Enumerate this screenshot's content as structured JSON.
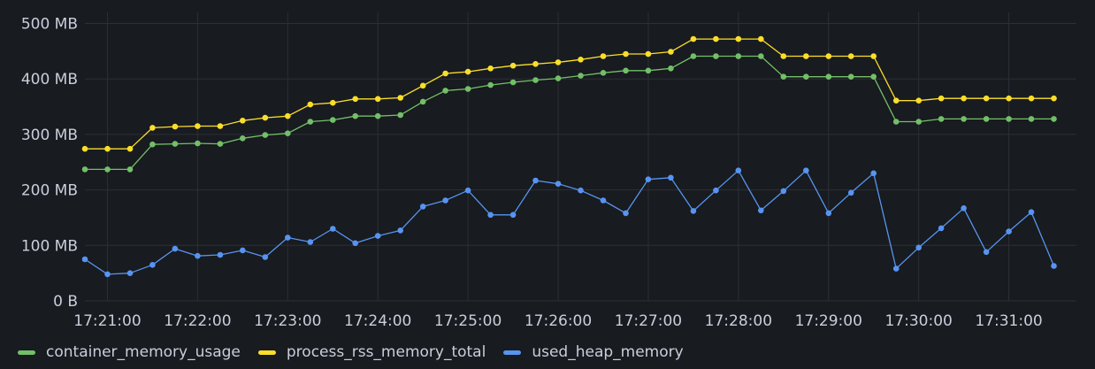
{
  "chart_data": {
    "type": "line",
    "title": "",
    "xlabel": "",
    "ylabel": "",
    "y_unit": "MB",
    "ylim": [
      0,
      520
    ],
    "y_ticks": [
      {
        "value": 0,
        "label": "0 B"
      },
      {
        "value": 100,
        "label": "100 MB"
      },
      {
        "value": 200,
        "label": "200 MB"
      },
      {
        "value": 300,
        "label": "300 MB"
      },
      {
        "value": 400,
        "label": "400 MB"
      },
      {
        "value": 500,
        "label": "500 MB"
      }
    ],
    "xlim": [
      "17:20:45",
      "17:31:45"
    ],
    "x_ticks": [
      "17:21:00",
      "17:22:00",
      "17:23:00",
      "17:24:00",
      "17:25:00",
      "17:26:00",
      "17:27:00",
      "17:28:00",
      "17:29:00",
      "17:30:00",
      "17:31:00"
    ],
    "x": [
      "17:20:45",
      "17:21:00",
      "17:21:15",
      "17:21:30",
      "17:21:45",
      "17:22:00",
      "17:22:15",
      "17:22:30",
      "17:22:45",
      "17:23:00",
      "17:23:15",
      "17:23:30",
      "17:23:45",
      "17:24:00",
      "17:24:15",
      "17:24:30",
      "17:24:45",
      "17:25:00",
      "17:25:15",
      "17:25:30",
      "17:25:45",
      "17:26:00",
      "17:26:15",
      "17:26:30",
      "17:26:45",
      "17:27:00",
      "17:27:15",
      "17:27:30",
      "17:27:45",
      "17:28:00",
      "17:28:15",
      "17:28:30",
      "17:28:45",
      "17:29:00",
      "17:29:15",
      "17:29:30",
      "17:29:45",
      "17:30:00",
      "17:30:15",
      "17:30:30",
      "17:30:45",
      "17:31:00",
      "17:31:15",
      "17:31:30"
    ],
    "grid": true,
    "legend_position": "bottom-left",
    "series": [
      {
        "name": "container_memory_usage",
        "color": "#73bf69",
        "values": [
          237,
          237,
          237,
          282,
          283,
          284,
          283,
          293,
          299,
          302,
          323,
          326,
          333,
          333,
          335,
          359,
          379,
          382,
          389,
          394,
          398,
          401,
          406,
          411,
          415,
          415,
          419,
          441,
          441,
          441,
          441,
          404,
          404,
          404,
          404,
          404,
          323,
          323,
          328,
          328,
          328,
          328,
          328,
          328
        ]
      },
      {
        "name": "process_rss_memory_total",
        "color": "#fade2a",
        "values": [
          274,
          274,
          274,
          312,
          314,
          315,
          315,
          325,
          330,
          333,
          354,
          357,
          364,
          364,
          366,
          388,
          410,
          413,
          419,
          424,
          427,
          430,
          435,
          441,
          445,
          445,
          449,
          472,
          472,
          472,
          472,
          441,
          441,
          441,
          441,
          441,
          361,
          361,
          365,
          365,
          365,
          365,
          365,
          365
        ]
      },
      {
        "name": "used_heap_memory",
        "color": "#5794f2",
        "values": [
          75,
          48,
          50,
          65,
          94,
          81,
          83,
          91,
          79,
          114,
          106,
          130,
          104,
          117,
          127,
          170,
          181,
          199,
          155,
          155,
          217,
          211,
          199,
          181,
          158,
          219,
          222,
          162,
          199,
          235,
          163,
          198,
          235,
          158,
          195,
          230,
          58,
          96,
          131,
          167,
          88,
          125,
          160,
          63
        ]
      }
    ]
  }
}
